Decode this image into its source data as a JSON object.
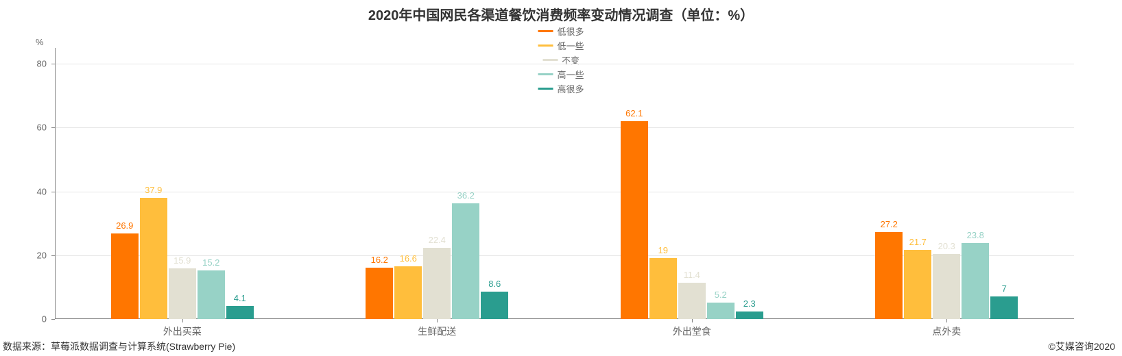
{
  "title": "2020年中国网民各渠道餐饮消费频率变动情况调查（单位：%）",
  "title_fontsize": 20,
  "title_color": "#333333",
  "footer_left": "数据来源：草莓派数据调查与计算系统(Strawberry Pie)",
  "footer_right": "©艾媒咨询2020",
  "y_axis": {
    "name": "%",
    "min": 0,
    "max": 85,
    "ticks": [
      0,
      20,
      40,
      60,
      80
    ],
    "label_fontsize": 13,
    "label_color": "#666666",
    "gridline_color": "#e6e6e6",
    "axis_color": "#888888"
  },
  "legend": {
    "items": [
      {
        "label": "低很多",
        "color": "#ff7600"
      },
      {
        "label": "低一些",
        "color": "#ffbe3c"
      },
      {
        "label": "不变",
        "color": "#e2e0d2"
      },
      {
        "label": "高一些",
        "color": "#97d2c6"
      },
      {
        "label": "高很多",
        "color": "#2a9d8f"
      }
    ],
    "fontsize": 13
  },
  "categories": [
    {
      "label": "外出买菜",
      "values": [
        26.9,
        37.9,
        15.9,
        15.2,
        4.1
      ]
    },
    {
      "label": "生鲜配送",
      "values": [
        16.2,
        16.6,
        22.4,
        36.2,
        8.6
      ]
    },
    {
      "label": "外出堂食",
      "values": [
        62.1,
        19,
        11.4,
        5.2,
        2.3
      ]
    },
    {
      "label": "点外卖",
      "values": [
        27.2,
        21.7,
        20.3,
        23.8,
        7
      ]
    }
  ],
  "chart": {
    "type": "grouped-bar",
    "background_color": "#ffffff",
    "bar_label_fontsize": 13,
    "category_label_fontsize": 14,
    "category_label_color": "#666666"
  }
}
